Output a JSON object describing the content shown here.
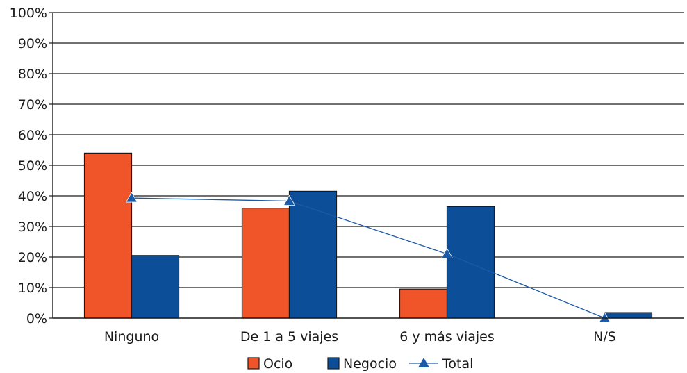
{
  "chart_data": {
    "type": "bar",
    "categories": [
      "Ninguno",
      "De 1 a 5 viajes",
      "6 y más viajes",
      "N/S"
    ],
    "series": [
      {
        "name": "Ocio",
        "kind": "bar",
        "color": "#ef5529",
        "values": [
          54,
          36,
          9.5,
          0
        ]
      },
      {
        "name": "Negocio",
        "kind": "bar",
        "color": "#0c4f98",
        "values": [
          20.5,
          41.5,
          36.5,
          1.8
        ]
      },
      {
        "name": "Total",
        "kind": "line",
        "color": "#1a5aa6",
        "marker": "triangle",
        "values": [
          39.3,
          38.3,
          21,
          0
        ]
      }
    ],
    "ylim": [
      0,
      100
    ],
    "yticks": [
      "0%",
      "10%",
      "20%",
      "30%",
      "40%",
      "50%",
      "60%",
      "70%",
      "80%",
      "90%",
      "100%"
    ],
    "grid": true,
    "legend_position": "bottom"
  }
}
